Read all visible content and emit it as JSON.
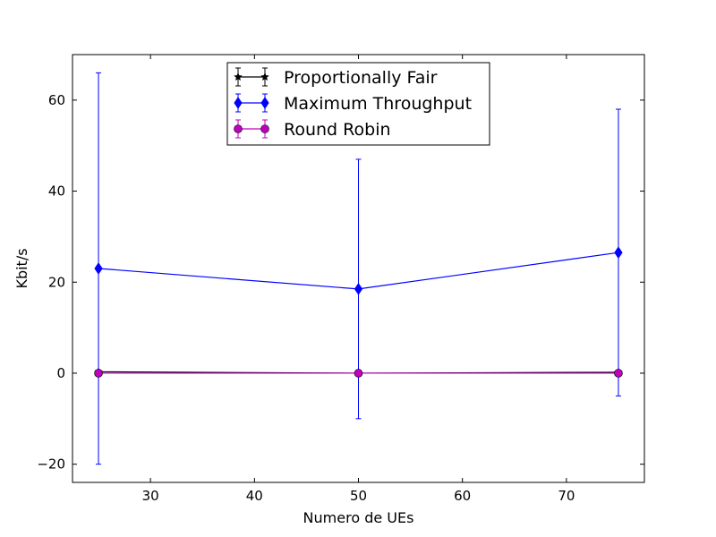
{
  "chart_data": {
    "type": "line",
    "xlabel": "Numero de UEs",
    "ylabel": "Kbit/s",
    "xlim": [
      22.5,
      77.5
    ],
    "ylim": [
      -24,
      70
    ],
    "xticks": [
      30,
      40,
      50,
      60,
      70
    ],
    "yticks": [
      -20,
      0,
      20,
      40,
      60
    ],
    "ytick_labels": [
      "−20",
      "0",
      "20",
      "40",
      "60"
    ],
    "grid": false,
    "legend_position": "top-center",
    "x": [
      25,
      50,
      75
    ],
    "series": [
      {
        "name": "Proportionally Fair",
        "color": "#000000",
        "marker": "star",
        "values": [
          0.3,
          0.0,
          0.2
        ],
        "err_low": [
          0.1,
          0.05,
          0.1
        ],
        "err_high": [
          0.1,
          0.05,
          0.1
        ]
      },
      {
        "name": "Maximum Throughput",
        "color": "#0000ff",
        "marker": "diamond",
        "values": [
          23,
          18.5,
          26.5
        ],
        "err_low": [
          -20,
          -10,
          -5
        ],
        "err_high": [
          66,
          47,
          58
        ]
      },
      {
        "name": "Round Robin",
        "color": "#bf00bf",
        "marker": "circle",
        "values": [
          0.0,
          0.0,
          0.0
        ],
        "err_low": [
          -0.05,
          -0.05,
          -0.05
        ],
        "err_high": [
          0.05,
          0.05,
          0.05
        ]
      }
    ]
  }
}
